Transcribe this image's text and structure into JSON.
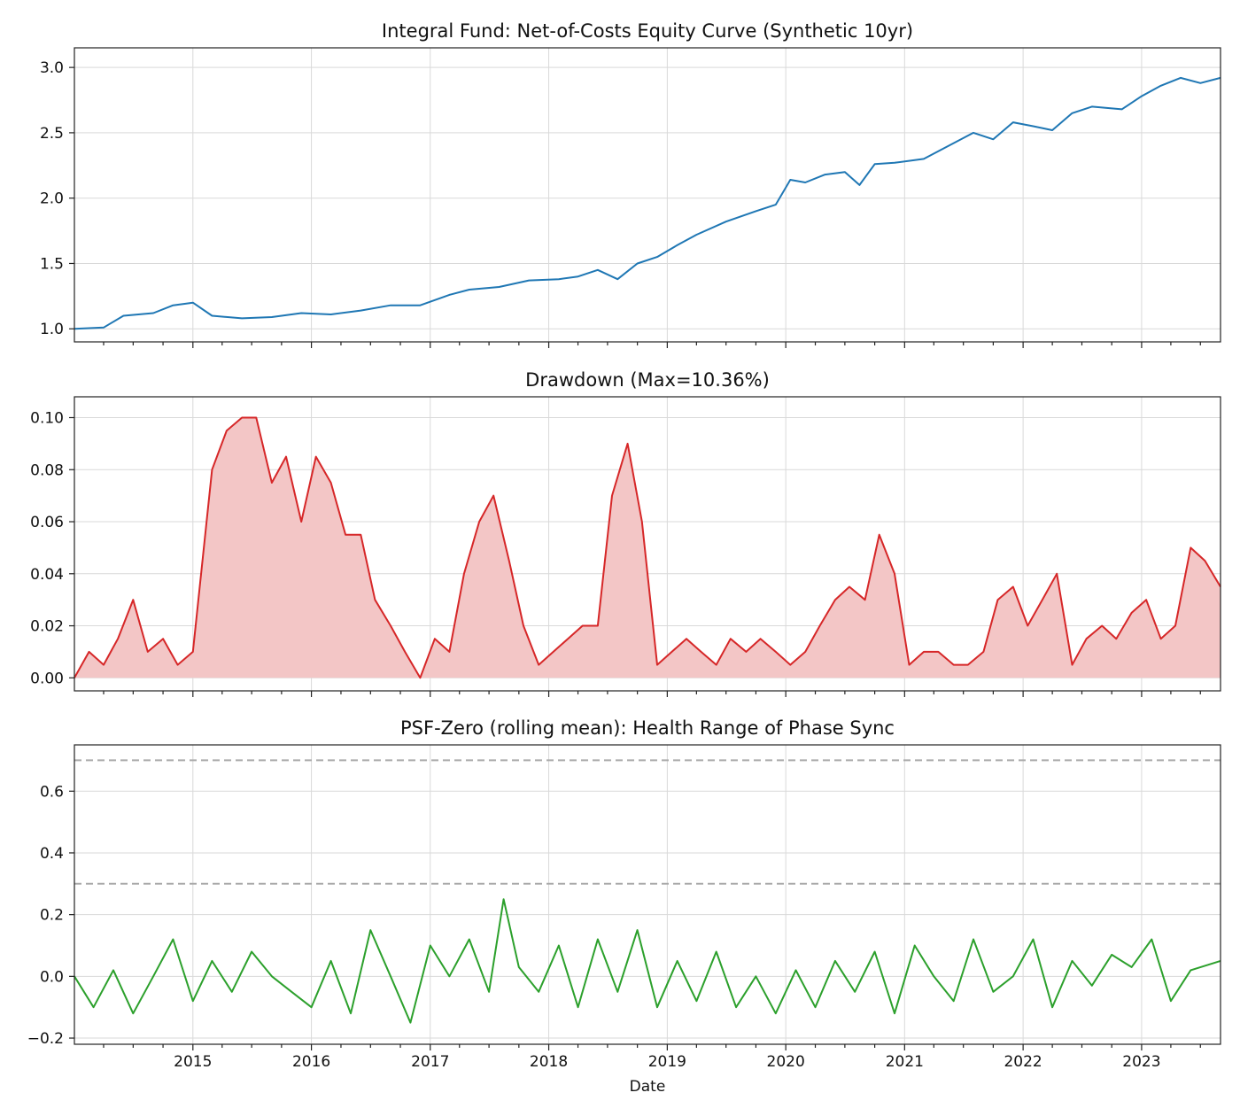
{
  "chart_data": [
    {
      "type": "line",
      "title": "Integral Fund: Net-of-Costs Equity Curve (Synthetic 10yr)",
      "xlabel": "",
      "ylabel": "",
      "xlim": [
        "2014-01-01",
        "2023-09-01"
      ],
      "ylim": [
        0.9,
        3.15
      ],
      "yticks": [
        1.0,
        1.5,
        2.0,
        2.5,
        3.0
      ],
      "ytick_labels": [
        "1.0",
        "1.5",
        "2.0",
        "2.5",
        "3.0"
      ],
      "grid": true,
      "series": [
        {
          "color": "#1f77b4",
          "x": [
            "2014-01-01",
            "2014-04-01",
            "2014-06-01",
            "2014-09-01",
            "2014-11-01",
            "2015-01-01",
            "2015-03-01",
            "2015-06-01",
            "2015-09-01",
            "2015-12-01",
            "2016-03-01",
            "2016-06-01",
            "2016-09-01",
            "2016-12-01",
            "2017-03-01",
            "2017-05-01",
            "2017-08-01",
            "2017-11-01",
            "2018-02-01",
            "2018-04-01",
            "2018-06-01",
            "2018-08-01",
            "2018-10-01",
            "2018-12-01",
            "2019-02-01",
            "2019-04-01",
            "2019-07-01",
            "2019-10-01",
            "2019-12-01",
            "2020-01-15",
            "2020-03-01",
            "2020-05-01",
            "2020-07-01",
            "2020-08-15",
            "2020-10-01",
            "2020-12-01",
            "2021-03-01",
            "2021-05-01",
            "2021-08-01",
            "2021-10-01",
            "2021-12-01",
            "2022-02-01",
            "2022-04-01",
            "2022-06-01",
            "2022-08-01",
            "2022-11-01",
            "2023-01-01",
            "2023-03-01",
            "2023-05-01",
            "2023-07-01",
            "2023-09-01"
          ],
          "y": [
            1.0,
            1.01,
            1.1,
            1.12,
            1.18,
            1.2,
            1.1,
            1.08,
            1.09,
            1.12,
            1.11,
            1.14,
            1.18,
            1.18,
            1.26,
            1.3,
            1.32,
            1.37,
            1.38,
            1.4,
            1.45,
            1.38,
            1.5,
            1.55,
            1.64,
            1.72,
            1.82,
            1.9,
            1.95,
            2.14,
            2.12,
            2.18,
            2.2,
            2.1,
            2.26,
            2.27,
            2.3,
            2.38,
            2.5,
            2.45,
            2.58,
            2.55,
            2.52,
            2.65,
            2.7,
            2.68,
            2.78,
            2.86,
            2.92,
            2.88,
            2.92
          ]
        }
      ]
    },
    {
      "type": "area",
      "title": "Drawdown (Max=10.36%)",
      "xlabel": "",
      "ylabel": "",
      "xlim": [
        "2014-01-01",
        "2023-09-01"
      ],
      "ylim": [
        -0.005,
        0.108
      ],
      "yticks": [
        0.0,
        0.02,
        0.04,
        0.06,
        0.08,
        0.1
      ],
      "ytick_labels": [
        "0.00",
        "0.02",
        "0.04",
        "0.06",
        "0.08",
        "0.10"
      ],
      "grid": true,
      "series": [
        {
          "color": "#d62728",
          "fill": "#f3c6c6",
          "x": [
            "2014-01-01",
            "2014-02-15",
            "2014-04-01",
            "2014-05-15",
            "2014-07-01",
            "2014-08-15",
            "2014-10-01",
            "2014-11-15",
            "2015-01-01",
            "2015-03-01",
            "2015-04-15",
            "2015-06-01",
            "2015-07-15",
            "2015-09-01",
            "2015-10-15",
            "2015-12-01",
            "2016-01-15",
            "2016-03-01",
            "2016-04-15",
            "2016-06-01",
            "2016-07-15",
            "2016-09-01",
            "2016-10-15",
            "2016-12-01",
            "2017-01-15",
            "2017-03-01",
            "2017-04-15",
            "2017-06-01",
            "2017-07-15",
            "2017-09-01",
            "2017-10-15",
            "2017-12-01",
            "2018-01-15",
            "2018-03-01",
            "2018-04-15",
            "2018-06-01",
            "2018-07-15",
            "2018-09-01",
            "2018-10-15",
            "2018-12-01",
            "2019-01-15",
            "2019-03-01",
            "2019-04-15",
            "2019-06-01",
            "2019-07-15",
            "2019-09-01",
            "2019-10-15",
            "2019-12-01",
            "2020-01-15",
            "2020-03-01",
            "2020-04-15",
            "2020-06-01",
            "2020-07-15",
            "2020-09-01",
            "2020-10-15",
            "2020-12-01",
            "2021-01-15",
            "2021-03-01",
            "2021-04-15",
            "2021-06-01",
            "2021-07-15",
            "2021-09-01",
            "2021-10-15",
            "2021-12-01",
            "2022-01-15",
            "2022-03-01",
            "2022-04-15",
            "2022-06-01",
            "2022-07-15",
            "2022-09-01",
            "2022-10-15",
            "2022-12-01",
            "2023-01-15",
            "2023-03-01",
            "2023-04-15",
            "2023-06-01",
            "2023-07-15",
            "2023-09-01"
          ],
          "y": [
            0.0,
            0.01,
            0.005,
            0.015,
            0.03,
            0.01,
            0.015,
            0.005,
            0.01,
            0.08,
            0.095,
            0.1,
            0.1,
            0.075,
            0.085,
            0.06,
            0.085,
            0.075,
            0.055,
            0.055,
            0.03,
            0.02,
            0.01,
            0.0,
            0.015,
            0.01,
            0.04,
            0.06,
            0.07,
            0.045,
            0.02,
            0.005,
            0.01,
            0.015,
            0.02,
            0.02,
            0.07,
            0.09,
            0.06,
            0.005,
            0.01,
            0.015,
            0.01,
            0.005,
            0.015,
            0.01,
            0.015,
            0.01,
            0.005,
            0.01,
            0.02,
            0.03,
            0.035,
            0.03,
            0.055,
            0.04,
            0.005,
            0.01,
            0.01,
            0.005,
            0.005,
            0.01,
            0.03,
            0.035,
            0.02,
            0.03,
            0.04,
            0.005,
            0.015,
            0.02,
            0.015,
            0.025,
            0.03,
            0.015,
            0.02,
            0.05,
            0.045,
            0.035
          ]
        }
      ]
    },
    {
      "type": "line",
      "title": "PSF-Zero (rolling mean): Health Range of Phase Sync",
      "xlabel": "Date",
      "ylabel": "",
      "xlim": [
        "2014-01-01",
        "2023-09-01"
      ],
      "ylim": [
        -0.22,
        0.75
      ],
      "yticks": [
        -0.2,
        0.0,
        0.2,
        0.4,
        0.6
      ],
      "ytick_labels": [
        "−0.2",
        "0.0",
        "0.2",
        "0.4",
        "0.6"
      ],
      "xticks": [
        "2015-01-01",
        "2016-01-01",
        "2017-01-01",
        "2018-01-01",
        "2019-01-01",
        "2020-01-01",
        "2021-01-01",
        "2022-01-01",
        "2023-01-01"
      ],
      "xtick_labels": [
        "2015",
        "2016",
        "2017",
        "2018",
        "2019",
        "2020",
        "2021",
        "2022",
        "2023"
      ],
      "grid": true,
      "reference_lines": [
        {
          "y": 0.3,
          "color": "#aaaaaa",
          "style": "dashed"
        },
        {
          "y": 0.7,
          "color": "#aaaaaa",
          "style": "dashed"
        }
      ],
      "series": [
        {
          "color": "#2ca02c",
          "x": [
            "2014-01-01",
            "2014-03-01",
            "2014-05-01",
            "2014-07-01",
            "2014-09-01",
            "2014-11-01",
            "2015-01-01",
            "2015-03-01",
            "2015-05-01",
            "2015-07-01",
            "2015-09-01",
            "2015-11-01",
            "2016-01-01",
            "2016-03-01",
            "2016-05-01",
            "2016-07-01",
            "2016-09-01",
            "2016-11-01",
            "2017-01-01",
            "2017-03-01",
            "2017-05-01",
            "2017-07-01",
            "2017-08-15",
            "2017-10-01",
            "2017-12-01",
            "2018-02-01",
            "2018-04-01",
            "2018-06-01",
            "2018-08-01",
            "2018-10-01",
            "2018-12-01",
            "2019-02-01",
            "2019-04-01",
            "2019-06-01",
            "2019-08-01",
            "2019-10-01",
            "2019-12-01",
            "2020-02-01",
            "2020-04-01",
            "2020-06-01",
            "2020-08-01",
            "2020-10-01",
            "2020-12-01",
            "2021-02-01",
            "2021-04-01",
            "2021-06-01",
            "2021-08-01",
            "2021-10-01",
            "2021-12-01",
            "2022-02-01",
            "2022-04-01",
            "2022-06-01",
            "2022-08-01",
            "2022-10-01",
            "2022-12-01",
            "2023-02-01",
            "2023-04-01",
            "2023-06-01",
            "2023-09-01"
          ],
          "y": [
            0.0,
            -0.1,
            0.02,
            -0.12,
            0.0,
            0.12,
            -0.08,
            0.05,
            -0.05,
            0.08,
            0.0,
            -0.05,
            -0.1,
            0.05,
            -0.12,
            0.15,
            0.0,
            -0.15,
            0.1,
            0.0,
            0.12,
            -0.05,
            0.25,
            0.03,
            -0.05,
            0.1,
            -0.1,
            0.12,
            -0.05,
            0.15,
            -0.1,
            0.05,
            -0.08,
            0.08,
            -0.1,
            0.0,
            -0.12,
            0.02,
            -0.1,
            0.05,
            -0.05,
            0.08,
            -0.12,
            0.1,
            0.0,
            -0.08,
            0.12,
            -0.05,
            0.0,
            0.12,
            -0.1,
            0.05,
            -0.03,
            0.07,
            0.03,
            0.12,
            -0.08,
            0.02,
            0.05
          ]
        }
      ]
    }
  ]
}
